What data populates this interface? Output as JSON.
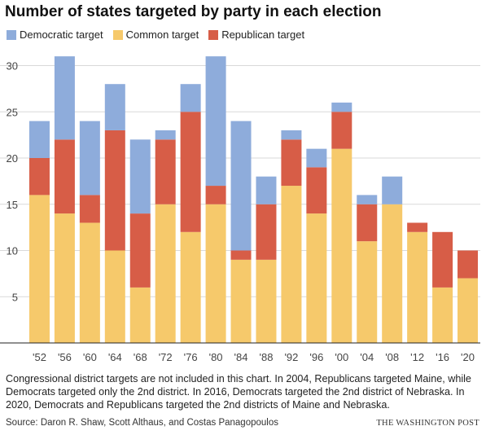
{
  "title": "Number of states targeted by party in each election",
  "legend": [
    {
      "label": "Democratic target",
      "color": "#8eacdb"
    },
    {
      "label": "Common target",
      "color": "#f6c96b"
    },
    {
      "label": "Republican target",
      "color": "#d75d47"
    }
  ],
  "note": "Congressional district targets are not included in this chart. In 2004, Republicans targeted Maine, while Democrats targeted only the 2nd district. In 2016, Democrats targeted the 2nd district of Nebraska. In 2020, Democrats and Republicans targeted the 2nd districts of Maine and Nebraska.",
  "source": "Source: Daron R. Shaw, Scott Althaus, and Costas Panagopoulos",
  "credit": "THE WASHINGTON POST",
  "chart_data": {
    "type": "bar",
    "stacked": true,
    "categories": [
      "'52",
      "'56",
      "'60",
      "'64",
      "'68",
      "'72",
      "'76",
      "'80",
      "'84",
      "'88",
      "'92",
      "'96",
      "'00",
      "'04",
      "'08",
      "'12",
      "'16",
      "'20"
    ],
    "series": [
      {
        "name": "Common target",
        "color": "#f6c96b",
        "values": [
          16,
          14,
          13,
          10,
          6,
          15,
          12,
          15,
          9,
          9,
          17,
          14,
          21,
          11,
          15,
          12,
          6,
          7
        ]
      },
      {
        "name": "Republican target",
        "color": "#d75d47",
        "values": [
          4,
          8,
          3,
          13,
          8,
          7,
          13,
          2,
          1,
          6,
          5,
          5,
          4,
          4,
          0,
          1,
          6,
          3
        ]
      },
      {
        "name": "Democratic target",
        "color": "#8eacdb",
        "values": [
          4,
          9,
          8,
          5,
          8,
          1,
          3,
          14,
          14,
          3,
          1,
          2,
          1,
          1,
          3,
          0,
          0,
          0
        ]
      }
    ],
    "yticks": [
      5,
      10,
      15,
      20,
      25,
      30
    ],
    "ylim": [
      0,
      31
    ],
    "grid": true
  }
}
